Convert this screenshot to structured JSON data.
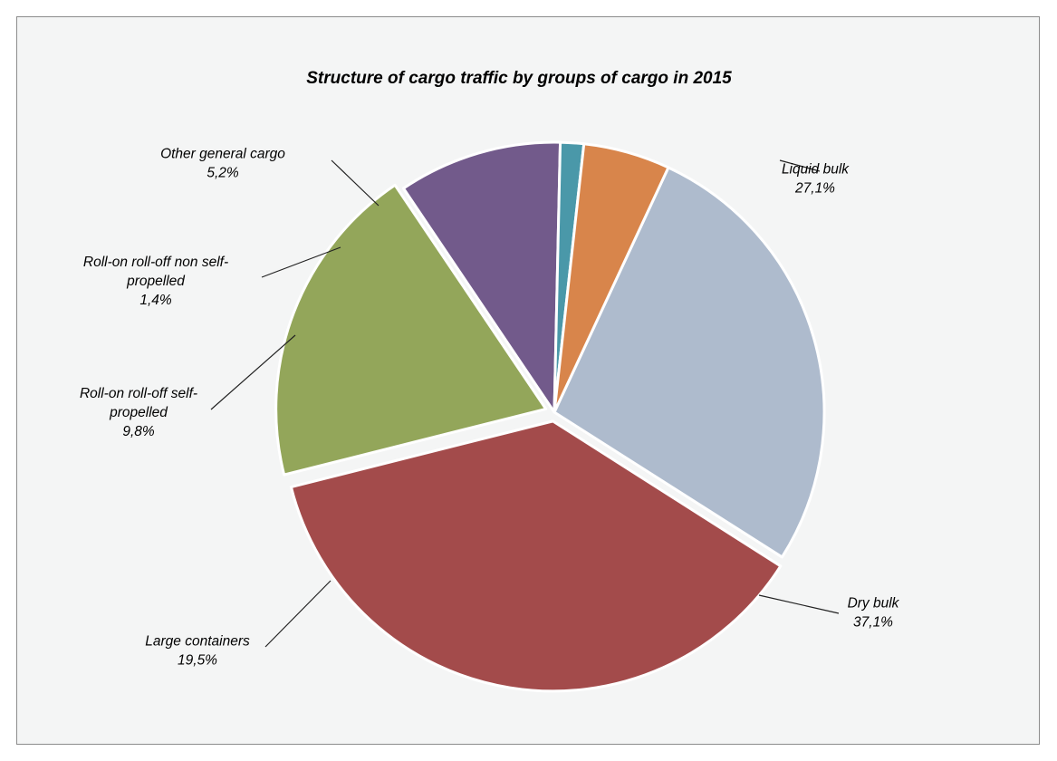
{
  "chart_data": {
    "type": "pie",
    "title": "Structure of cargo traffic by groups of cargo in 2015",
    "slices": [
      {
        "name": "Liquid bulk",
        "label_lines": [
          "Liquid bulk"
        ],
        "value": 27.1,
        "value_label": "27,1%",
        "color": "#aebbcd",
        "exploded": false
      },
      {
        "name": "Dry bulk",
        "label_lines": [
          "Dry bulk"
        ],
        "value": 37.1,
        "value_label": "37,1%",
        "color": "#a34b4b",
        "exploded": true
      },
      {
        "name": "Large containers",
        "label_lines": [
          "Large containers"
        ],
        "value": 19.5,
        "value_label": "19,5%",
        "color": "#93a65a",
        "exploded": true
      },
      {
        "name": "Roll-on roll-off self-propelled",
        "label_lines": [
          "Roll-on roll-off self-",
          "propelled"
        ],
        "value": 9.8,
        "value_label": "9,8%",
        "color": "#725a8b",
        "exploded": false
      },
      {
        "name": "Roll-on roll-off non self-propelled",
        "label_lines": [
          "Roll-on roll-off non self-",
          "propelled"
        ],
        "value": 1.4,
        "value_label": "1,4%",
        "color": "#4a98a9",
        "exploded": false
      },
      {
        "name": "Other general cargo",
        "label_lines": [
          "Other general cargo"
        ],
        "value": 5.2,
        "value_label": "5,2%",
        "color": "#d8854b",
        "exploded": false
      }
    ],
    "legend": "none"
  }
}
